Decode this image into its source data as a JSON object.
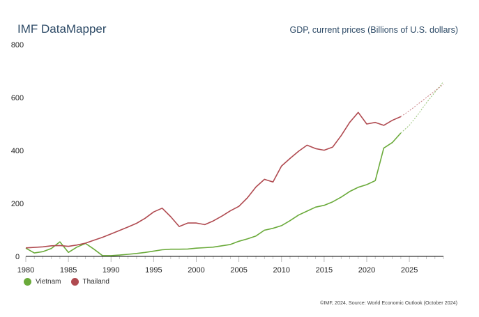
{
  "header": {
    "app_title": "IMF DataMapper",
    "chart_title": "GDP, current prices (Billions of U.S. dollars)"
  },
  "footer": {
    "source": "©IMF, 2024, Source: World Economic Outlook (October 2024)"
  },
  "colors": {
    "vietnam": "#6aaa3a",
    "thailand": "#b04a50",
    "axis": "#000000",
    "grid": "#bbbbbb",
    "title": "#2e4b67"
  },
  "chart_data": {
    "type": "line",
    "title": "GDP, current prices (Billions of U.S. dollars)",
    "xlabel": "",
    "ylabel": "",
    "xlim": [
      1980,
      2029
    ],
    "ylim": [
      0,
      800
    ],
    "y_ticks": [
      0,
      200,
      400,
      600,
      800
    ],
    "x_ticks": [
      1980,
      1985,
      1990,
      1995,
      2000,
      2005,
      2010,
      2015,
      2020,
      2025
    ],
    "grid": false,
    "legend_position": "bottom-left",
    "actual_until": 2024,
    "series": [
      {
        "name": "Vietnam",
        "color": "#6aaa3a",
        "x": [
          1980,
          1981,
          1982,
          1983,
          1984,
          1985,
          1986,
          1987,
          1988,
          1989,
          1990,
          1991,
          1992,
          1993,
          1994,
          1995,
          1996,
          1997,
          1998,
          1999,
          2000,
          2001,
          2002,
          2003,
          2004,
          2005,
          2006,
          2007,
          2008,
          2009,
          2010,
          2011,
          2012,
          2013,
          2014,
          2015,
          2016,
          2017,
          2018,
          2019,
          2020,
          2021,
          2022,
          2023,
          2024,
          2025,
          2026,
          2027,
          2028,
          2029
        ],
        "values": [
          31,
          13,
          18,
          30,
          55,
          15,
          35,
          49,
          27,
          3,
          3,
          5,
          8,
          11,
          15,
          20,
          25,
          27,
          27,
          28,
          31,
          33,
          35,
          40,
          45,
          57,
          66,
          77,
          99,
          106,
          116,
          135,
          156,
          171,
          186,
          193,
          206,
          224,
          245,
          261,
          271,
          286,
          409,
          430,
          466,
          495,
          535,
          580,
          620,
          660
        ]
      },
      {
        "name": "Thailand",
        "color": "#b04a50",
        "x": [
          1980,
          1981,
          1982,
          1983,
          1984,
          1985,
          1986,
          1987,
          1988,
          1989,
          1990,
          1991,
          1992,
          1993,
          1994,
          1995,
          1996,
          1997,
          1998,
          1999,
          2000,
          2001,
          2002,
          2003,
          2004,
          2005,
          2006,
          2007,
          2008,
          2009,
          2010,
          2011,
          2012,
          2013,
          2014,
          2015,
          2016,
          2017,
          2018,
          2019,
          2020,
          2021,
          2022,
          2023,
          2024,
          2025,
          2026,
          2027,
          2028,
          2029
        ],
        "values": [
          32,
          34,
          36,
          40,
          41,
          38,
          43,
          50,
          61,
          72,
          85,
          98,
          111,
          125,
          144,
          168,
          182,
          150,
          113,
          126,
          126,
          120,
          134,
          152,
          172,
          189,
          221,
          262,
          291,
          281,
          341,
          370,
          397,
          420,
          407,
          401,
          413,
          456,
          506,
          544,
          500,
          506,
          495,
          514,
          528,
          550,
          575,
          600,
          625,
          650
        ]
      }
    ]
  }
}
